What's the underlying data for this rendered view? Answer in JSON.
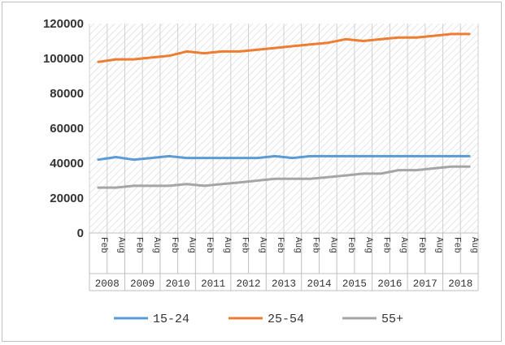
{
  "chart_data": {
    "type": "line",
    "title": "",
    "xlabel": "",
    "ylabel": "",
    "ylim": [
      0,
      120000
    ],
    "yticks": [
      0,
      20000,
      40000,
      60000,
      80000,
      100000,
      120000
    ],
    "grid": "hatched plot area with vertical gridlines",
    "legend_position": "bottom",
    "years": [
      "2008",
      "2009",
      "2010",
      "2011",
      "2012",
      "2013",
      "2014",
      "2015",
      "2016",
      "2017",
      "2018"
    ],
    "months": [
      "Feb",
      "Aug"
    ],
    "categories": [
      "2008 Feb",
      "2008 Aug",
      "2009 Feb",
      "2009 Aug",
      "2010 Feb",
      "2010 Aug",
      "2011 Feb",
      "2011 Aug",
      "2012 Feb",
      "2012 Aug",
      "2013 Feb",
      "2013 Aug",
      "2014 Feb",
      "2014 Aug",
      "2015 Feb",
      "2015 Aug",
      "2016 Feb",
      "2016 Aug",
      "2017 Feb",
      "2017 Aug",
      "2018 Feb",
      "2018 Aug"
    ],
    "series": [
      {
        "name": "15-24",
        "color": "#5b9bd5",
        "values": [
          42000,
          43500,
          42000,
          43000,
          44000,
          43000,
          43000,
          43000,
          43000,
          43000,
          44000,
          43000,
          44000,
          44000,
          44000,
          44000,
          44000,
          44000,
          44000,
          44000,
          44000,
          44000
        ]
      },
      {
        "name": "25-54",
        "color": "#ed7d31",
        "values": [
          98000,
          99500,
          99500,
          100500,
          101500,
          104000,
          103000,
          104000,
          104000,
          105000,
          106000,
          107000,
          108000,
          109000,
          111000,
          110000,
          111000,
          112000,
          112000,
          113000,
          114000,
          114000
        ]
      },
      {
        "name": "55+",
        "color": "#a5a5a5",
        "values": [
          26000,
          26000,
          27000,
          27000,
          27000,
          28000,
          27000,
          28000,
          29000,
          30000,
          31000,
          31000,
          31000,
          32000,
          33000,
          34000,
          34000,
          36000,
          36000,
          37000,
          38000,
          38000
        ]
      }
    ]
  }
}
